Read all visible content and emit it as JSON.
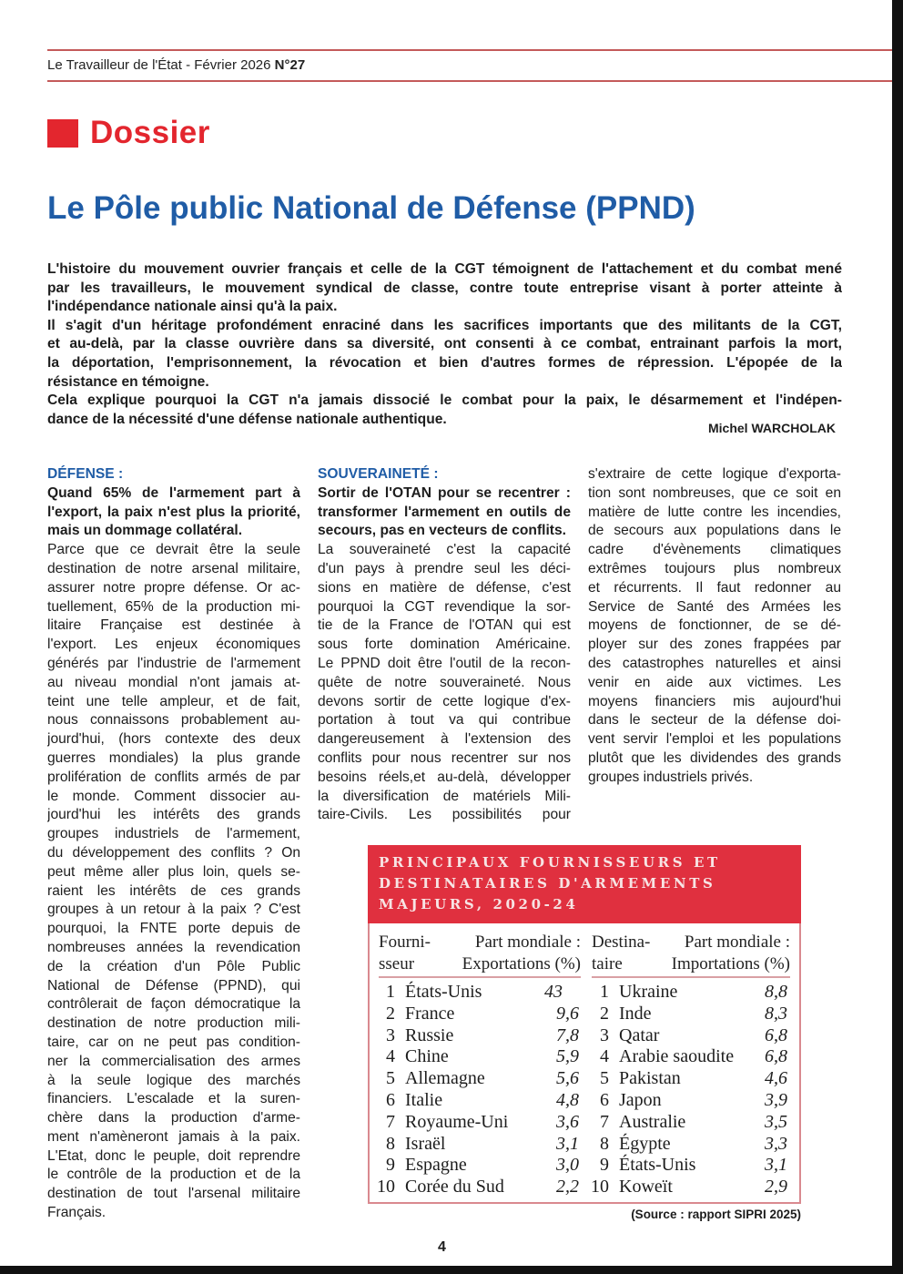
{
  "header": {
    "publication": "Le Travailleur de l'État - Février 2026",
    "issue": "N°27"
  },
  "section": "Dossier",
  "title": "Le Pôle public National de Défense (PPND)",
  "intro": {
    "paragraphs": [
      [
        "L'histoire du mouvement ouvrier français et celle de la CGT témoignent de l'attachement et du combat mené",
        "par les travailleurs, le mouvement syndical de classe, contre toute entreprise visant à porter atteinte à",
        "l'indépendance nationale ainsi qu'à la paix."
      ],
      [
        "Il s'agit d'un héritage profondément enraciné dans les sacrifices importants que des militants de la CGT,",
        "et au-delà, par la classe ouvrière dans sa diversité, ont consenti à ce combat, entrainant parfois la mort,",
        "la déportation, l'emprisonnement, la révocation et bien d'autres formes de répression. L'épopée de la",
        "résistance en témoigne."
      ],
      [
        "Cela explique pourquoi la CGT n'a jamais dissocié le combat pour la paix, le désarmement et l'indépen-",
        "dance de la nécessité d'une défense nationale authentique."
      ]
    ],
    "author": "Michel WARCHOLAK"
  },
  "columns": [
    {
      "heading": "DÉFENSE :",
      "lead": [
        "Quand 65% de l'armement part à",
        "l'export, la paix n'est plus la priorité,",
        "mais un dommage collatéral."
      ],
      "body": [
        "Parce que ce devrait être la seule",
        "destination de notre arsenal militaire,",
        "assurer notre propre défense. Or ac-",
        "tuellement, 65% de la production mi-",
        "litaire Française est destinée à",
        "l'export. Les enjeux économiques",
        "générés par l'industrie de l'armement",
        "au niveau mondial n'ont jamais at-",
        "teint une telle ampleur, et de fait,",
        "nous connaissons probablement au-",
        "jourd'hui, (hors contexte des deux",
        "guerres mondiales) la plus grande",
        "prolifération de conflits armés de par",
        "le monde. Comment dissocier au-",
        "jourd'hui les intérêts des grands",
        "groupes industriels de l'armement,",
        "du développement des conflits ? On",
        "peut même aller plus loin, quels se-",
        "raient les intérêts de ces grands",
        "groupes à un retour à la paix ? C'est",
        "pourquoi, la FNTE porte depuis de",
        "nombreuses années la revendication",
        "de la création d'un Pôle Public",
        "National de Défense (PPND), qui",
        "contrôlerait de façon démocratique la",
        "destination de notre production mili-",
        "taire, car on ne peut pas condition-",
        "ner la commercialisation des armes",
        "à la seule logique des marchés",
        "financiers. L'escalade et la suren-",
        "chère dans la production d'arme-",
        "ment n'amèneront jamais à la paix.",
        "L'Etat, donc le peuple, doit reprendre",
        "le contrôle de la production et de la",
        "destination de tout l'arsenal militaire",
        "Français."
      ]
    },
    {
      "heading": "SOUVERAINETÉ :",
      "lead": [
        "Sortir de l'OTAN pour se recentrer :",
        "transformer l'armement en outils de",
        "secours, pas en vecteurs de conflits."
      ],
      "body": [
        "La souveraineté c'est la capacité",
        "d'un pays à prendre seul les déci-",
        "sions en matière de défense, c'est",
        "pourquoi la CGT revendique la sor-",
        "tie de la France de l'OTAN qui est",
        "sous forte domination Américaine.",
        "Le PPND doit être l'outil de la recon-",
        "quête de notre souveraineté. Nous",
        "devons sortir de cette logique d'ex-",
        "portation à tout va qui contribue",
        "dangereusement à l'extension des",
        "conflits pour nous recentrer sur nos",
        "besoins réels,et au-delà, développer",
        "la diversification de matériels Mili-",
        "taire-Civils. Les possibilités pour"
      ]
    },
    {
      "heading": "",
      "lead": [],
      "body": [
        "s'extraire de cette logique d'exporta-",
        "tion sont nombreuses, que ce soit en",
        "matière de lutte contre les incendies,",
        "de secours aux populations dans le",
        "cadre d'évènements climatiques",
        "extrêmes toujours plus nombreux",
        "et récurrents. Il faut redonner au",
        "Service de Santé des Armées les",
        "moyens de fonctionner, de se dé-",
        "ployer sur des zones frappées par",
        "des catastrophes naturelles et ainsi",
        "venir en aide aux victimes. Les",
        "moyens financiers mis aujourd'hui",
        "dans le secteur de la défense doi-",
        "vent servir l'emploi et les populations",
        "plutôt que les dividendes des grands",
        "groupes industriels privés."
      ]
    }
  ],
  "table": {
    "title": [
      "PRINCIPAUX FOURNISSEURS ET",
      "DESTINATAIRES D'ARMEMENTS",
      "MAJEURS, 2020-24"
    ],
    "header_color": "#e0303f",
    "exporters_header": {
      "col1": [
        "Fourni-",
        "sseur"
      ],
      "col2": [
        "Part mondiale :",
        "Exportations (%)"
      ]
    },
    "importers_header": {
      "col1": [
        "Destina-",
        "taire"
      ],
      "col2": [
        "Part mondiale :",
        "Importations (%)"
      ]
    },
    "exporters": [
      {
        "rank": "1",
        "country": "États-Unis",
        "share": "43"
      },
      {
        "rank": "2",
        "country": "France",
        "share": "9,6"
      },
      {
        "rank": "3",
        "country": "Russie",
        "share": "7,8"
      },
      {
        "rank": "4",
        "country": "Chine",
        "share": "5,9"
      },
      {
        "rank": "5",
        "country": "Allemagne",
        "share": "5,6"
      },
      {
        "rank": "6",
        "country": "Italie",
        "share": "4,8"
      },
      {
        "rank": "7",
        "country": "Royaume-Uni",
        "share": "3,6"
      },
      {
        "rank": "8",
        "country": "Israël",
        "share": "3,1"
      },
      {
        "rank": "9",
        "country": "Espagne",
        "share": "3,0"
      },
      {
        "rank": "10",
        "country": "Corée du Sud",
        "share": "2,2"
      }
    ],
    "importers": [
      {
        "rank": "1",
        "country": "Ukraine",
        "share": "8,8"
      },
      {
        "rank": "2",
        "country": "Inde",
        "share": "8,3"
      },
      {
        "rank": "3",
        "country": "Qatar",
        "share": "6,8"
      },
      {
        "rank": "4",
        "country": "Arabie saoudite",
        "share": "6,8"
      },
      {
        "rank": "5",
        "country": "Pakistan",
        "share": "4,6"
      },
      {
        "rank": "6",
        "country": "Japon",
        "share": "3,9"
      },
      {
        "rank": "7",
        "country": "Australie",
        "share": "3,5"
      },
      {
        "rank": "8",
        "country": "Égypte",
        "share": "3,3"
      },
      {
        "rank": "9",
        "country": "États-Unis",
        "share": "3,1"
      },
      {
        "rank": "10",
        "country": "Koweït",
        "share": "2,9"
      }
    ],
    "source": "(Source : rapport SIPRI 2025)"
  },
  "page_number": "4"
}
